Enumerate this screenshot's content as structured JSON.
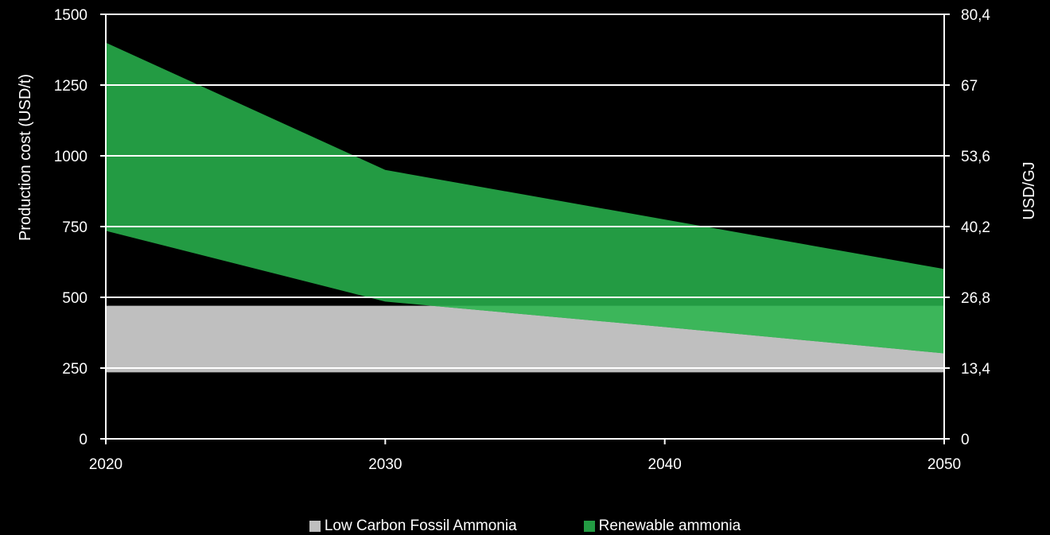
{
  "chart_data": {
    "type": "area",
    "x": [
      2020,
      2030,
      2040,
      2050
    ],
    "xlim": [
      2020,
      2050
    ],
    "ylabel_left": "Production cost (USD/t)",
    "ylabel_right": "USD/GJ",
    "ylim": [
      0,
      1500
    ],
    "yticks_left": [
      "0",
      "250",
      "500",
      "750",
      "1000",
      "1250",
      "1500"
    ],
    "yticks_right": [
      "0",
      "13,4",
      "26,8",
      "40,2",
      "53,6",
      "67",
      "80,4"
    ],
    "xticks": [
      "2020",
      "2030",
      "2040",
      "2050"
    ],
    "grid": true,
    "legend_position": "bottom",
    "series": [
      {
        "name": "Low Carbon Fossil Ammonia",
        "color": "#bfbfbf",
        "x": [
          2020,
          2050
        ],
        "low": [
          235,
          235
        ],
        "high": [
          470,
          470
        ]
      },
      {
        "name": "Renewable ammonia",
        "color": "#239b43",
        "color_overlap": "#3cb65a",
        "x": [
          2020,
          2030,
          2040,
          2050
        ],
        "low": [
          735,
          485,
          395,
          302
        ],
        "high": [
          1400,
          950,
          775,
          600
        ]
      }
    ]
  }
}
